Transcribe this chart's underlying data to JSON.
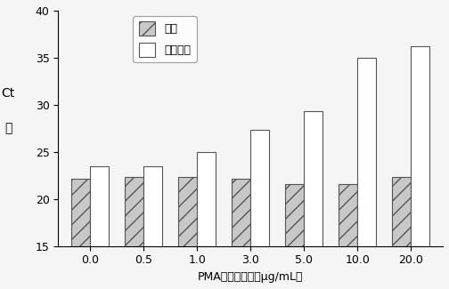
{
  "categories": [
    "0.0",
    "0.5",
    "1.0",
    "3.0",
    "5.0",
    "10.0",
    "20.0"
  ],
  "live_bacteria": [
    22.2,
    22.3,
    22.3,
    22.2,
    21.6,
    21.6,
    22.3
  ],
  "dead_bacteria": [
    23.5,
    23.5,
    25.0,
    27.3,
    29.3,
    35.0,
    36.2
  ],
  "live_color": "#c8c8c8",
  "live_hatch": "//",
  "dead_color": "#ffffff",
  "dead_hatch": "",
  "live_label": "活菌",
  "dead_label": "热灭活菌",
  "xlabel": "PMA质量浓度／（μg/mL）",
  "ylabel_ct": "Ct",
  "ylabel_zhi": "值",
  "ylim": [
    15,
    40
  ],
  "yticks": [
    15,
    20,
    25,
    30,
    35,
    40
  ],
  "bar_width": 0.35,
  "title": "",
  "edge_color": "#555555"
}
